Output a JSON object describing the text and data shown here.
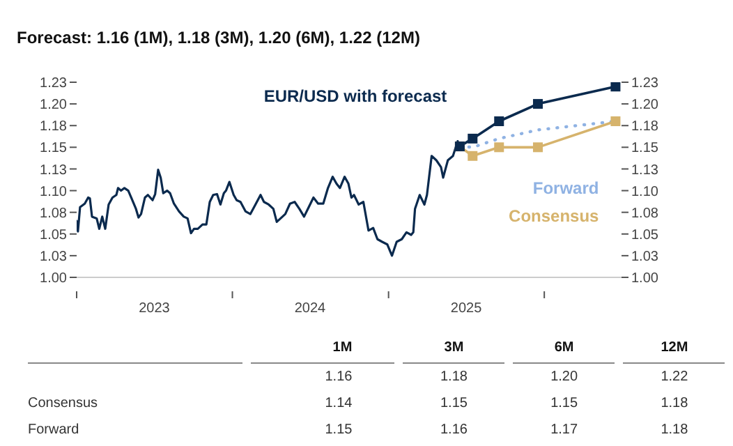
{
  "chart_data": [
    {
      "type": "line",
      "title": "Forecast: 1.16 (1M), 1.18 (3M), 1.20 (6M), 1.22 (12M)",
      "annotations": [
        "EUR/USD with forecast"
      ],
      "xlim": [
        "2023-01-01",
        "2026-07-01"
      ],
      "xticks": [
        {
          "value": "2023-01-01",
          "label": null
        },
        {
          "value": "2023-07-02",
          "label": "2023"
        },
        {
          "value": "2024-01-01",
          "label": null
        },
        {
          "value": "2024-07-01",
          "label": "2024"
        },
        {
          "value": "2025-01-01",
          "label": null
        },
        {
          "value": "2025-07-02",
          "label": "2025"
        },
        {
          "value": "2026-01-01",
          "label": null
        }
      ],
      "ylim": [
        1.0,
        1.225
      ],
      "yticks": [
        {
          "value": 1.0,
          "label": "1.00"
        },
        {
          "value": 1.025,
          "label": "1.03"
        },
        {
          "value": 1.05,
          "label": "1.05"
        },
        {
          "value": 1.075,
          "label": "1.08"
        },
        {
          "value": 1.1,
          "label": "1.10"
        },
        {
          "value": 1.125,
          "label": "1.13"
        },
        {
          "value": 1.15,
          "label": "1.15"
        },
        {
          "value": 1.175,
          "label": "1.18"
        },
        {
          "value": 1.2,
          "label": "1.20"
        },
        {
          "value": 1.225,
          "label": "1.23"
        }
      ],
      "y2lim": [
        1.0,
        1.225
      ],
      "y2ticks": [
        {
          "value": 1.0,
          "label": "1.00"
        },
        {
          "value": 1.025,
          "label": "1.03"
        },
        {
          "value": 1.05,
          "label": "1.05"
        },
        {
          "value": 1.075,
          "label": "1.08"
        },
        {
          "value": 1.1,
          "label": "1.10"
        },
        {
          "value": 1.125,
          "label": "1.13"
        },
        {
          "value": 1.15,
          "label": "1.15"
        },
        {
          "value": 1.175,
          "label": "1.18"
        },
        {
          "value": 1.2,
          "label": "1.20"
        },
        {
          "value": 1.225,
          "label": "1.23"
        }
      ],
      "series": [
        {
          "color": "#0b2a4e",
          "marker": "none",
          "line_style": "solid",
          "x": [
            "2023-01-01",
            "2023-01-04",
            "2023-01-09",
            "2023-01-20",
            "2023-01-28",
            "2023-02-01",
            "2023-02-06",
            "2023-02-17",
            "2023-02-23",
            "2023-03-02",
            "2023-03-09",
            "2023-03-17",
            "2023-03-26",
            "2023-04-04",
            "2023-04-08",
            "2023-04-15",
            "2023-04-23",
            "2023-05-02",
            "2023-05-09",
            "2023-05-20",
            "2023-05-26",
            "2023-06-01",
            "2023-06-10",
            "2023-06-17",
            "2023-06-28",
            "2023-07-04",
            "2023-07-11",
            "2023-07-17",
            "2023-07-23",
            "2023-08-01",
            "2023-08-08",
            "2023-08-17",
            "2023-08-29",
            "2023-09-09",
            "2023-09-18",
            "2023-09-26",
            "2023-10-03",
            "2023-10-12",
            "2023-10-23",
            "2023-11-01",
            "2023-11-09",
            "2023-11-17",
            "2023-11-26",
            "2023-12-04",
            "2023-12-12",
            "2023-12-17",
            "2023-12-25",
            "2024-01-04",
            "2024-01-11",
            "2024-01-20",
            "2024-02-01",
            "2024-02-12",
            "2024-02-23",
            "2024-03-07",
            "2024-03-15",
            "2024-03-26",
            "2024-04-06",
            "2024-04-14",
            "2024-04-23",
            "2024-05-04",
            "2024-05-15",
            "2024-05-26",
            "2024-06-06",
            "2024-06-17",
            "2024-06-28",
            "2024-07-09",
            "2024-07-20",
            "2024-08-01",
            "2024-08-12",
            "2024-08-23",
            "2024-09-01",
            "2024-09-09",
            "2024-09-20",
            "2024-09-29",
            "2024-10-06",
            "2024-10-12",
            "2024-10-23",
            "2024-11-03",
            "2024-11-15",
            "2024-11-26",
            "2024-12-06",
            "2024-12-17",
            "2024-12-29",
            "2025-01-09",
            "2025-01-20",
            "2025-02-01",
            "2025-02-12",
            "2025-02-23",
            "2025-02-28",
            "2025-03-04",
            "2025-03-15",
            "2025-03-26",
            "2025-04-01",
            "2025-04-12",
            "2025-04-23",
            "2025-05-04",
            "2025-05-09",
            "2025-05-20",
            "2025-06-01",
            "2025-06-12",
            "2025-06-17"
          ],
          "values": [
            1.065,
            1.053,
            1.081,
            1.085,
            1.092,
            1.091,
            1.07,
            1.068,
            1.056,
            1.07,
            1.056,
            1.084,
            1.092,
            1.095,
            1.103,
            1.1,
            1.103,
            1.1,
            1.092,
            1.079,
            1.069,
            1.073,
            1.092,
            1.095,
            1.089,
            1.096,
            1.124,
            1.115,
            1.097,
            1.1,
            1.097,
            1.085,
            1.076,
            1.07,
            1.068,
            1.051,
            1.056,
            1.056,
            1.061,
            1.061,
            1.087,
            1.095,
            1.096,
            1.084,
            1.097,
            1.1,
            1.11,
            1.095,
            1.089,
            1.087,
            1.076,
            1.073,
            1.083,
            1.095,
            1.087,
            1.084,
            1.079,
            1.064,
            1.068,
            1.073,
            1.085,
            1.087,
            1.079,
            1.07,
            1.081,
            1.092,
            1.085,
            1.085,
            1.103,
            1.116,
            1.108,
            1.103,
            1.116,
            1.108,
            1.092,
            1.095,
            1.084,
            1.087,
            1.054,
            1.057,
            1.044,
            1.041,
            1.038,
            1.025,
            1.041,
            1.044,
            1.052,
            1.049,
            1.052,
            1.079,
            1.095,
            1.084,
            1.095,
            1.14,
            1.135,
            1.127,
            1.115,
            1.135,
            1.14,
            1.157,
            1.151
          ]
        },
        {
          "name": "Forward",
          "color": "#8fb2e3",
          "marker": "none",
          "line_style": "dotted",
          "x": [
            "2025-06-17",
            "2025-07-17",
            "2025-09-17",
            "2025-12-17",
            "2026-06-17"
          ],
          "values": [
            1.151,
            1.15,
            1.16,
            1.17,
            1.18
          ]
        },
        {
          "name": "Consensus",
          "color": "#d6b36c",
          "marker": "square",
          "line_style": "solid",
          "x": [
            "2025-06-17",
            "2025-07-17",
            "2025-09-17",
            "2025-12-17",
            "2026-06-17"
          ],
          "values": [
            1.151,
            1.14,
            1.15,
            1.15,
            1.18
          ]
        },
        {
          "color": "#0b2a4e",
          "marker": "square",
          "line_style": "solid",
          "x": [
            "2025-06-17",
            "2025-07-17",
            "2025-09-17",
            "2025-12-17",
            "2026-06-17"
          ],
          "values": [
            1.151,
            1.16,
            1.18,
            1.2,
            1.22
          ]
        }
      ]
    },
    {
      "type": "other",
      "categories": [
        "1M",
        "3M",
        "6M",
        "12M"
      ],
      "series": [
        {
          "name": null,
          "values": [
            1.16,
            1.18,
            1.2,
            1.22
          ],
          "value_labels": [
            "1.16",
            "1.18",
            "1.20",
            "1.22"
          ]
        },
        {
          "name": "Consensus",
          "values": [
            1.14,
            1.15,
            1.15,
            1.18
          ],
          "value_labels": [
            "1.14",
            "1.15",
            "1.15",
            "1.18"
          ]
        },
        {
          "name": "Forward",
          "values": [
            1.15,
            1.16,
            1.17,
            1.18
          ],
          "value_labels": [
            "1.15",
            "1.16",
            "1.17",
            "1.18"
          ]
        }
      ]
    }
  ]
}
